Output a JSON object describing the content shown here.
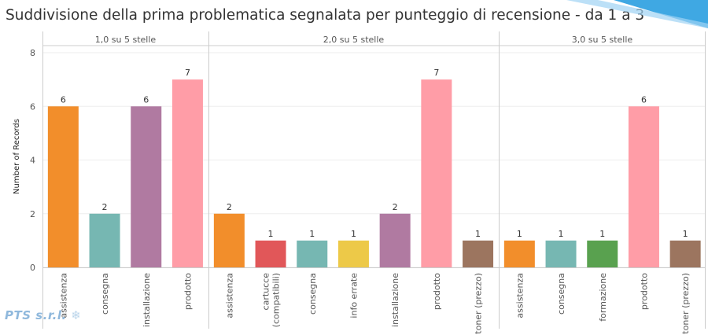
{
  "chart_data": {
    "type": "bar",
    "title": "Suddivisione della prima problematica segnalata per punteggio di recensione - da 1 a 3",
    "ylabel": "Number of Records",
    "ylim": [
      0,
      8
    ],
    "yticks": [
      0,
      2,
      4,
      6,
      8
    ],
    "panels": [
      {
        "label": "1,0 su 5 stelle",
        "bars": [
          {
            "category": "assistenza",
            "value": 6,
            "color": "#f28e2b"
          },
          {
            "category": "consegna",
            "value": 2,
            "color": "#76b7b2"
          },
          {
            "category": "installazione",
            "value": 6,
            "color": "#b07aa1"
          },
          {
            "category": "prodotto",
            "value": 7,
            "color": "#ff9da7"
          }
        ]
      },
      {
        "label": "2,0 su 5 stelle",
        "bars": [
          {
            "category": "assistenza",
            "value": 2,
            "color": "#f28e2b"
          },
          {
            "category": "cartucce (compatibili)",
            "lines": [
              "cartucce",
              "(compatibili)"
            ],
            "value": 1,
            "color": "#e15759"
          },
          {
            "category": "consegna",
            "value": 1,
            "color": "#76b7b2"
          },
          {
            "category": "info errate",
            "value": 1,
            "color": "#edc948"
          },
          {
            "category": "installazione",
            "value": 2,
            "color": "#b07aa1"
          },
          {
            "category": "prodotto",
            "value": 7,
            "color": "#ff9da7"
          },
          {
            "category": "toner (prezzo)",
            "value": 1,
            "color": "#9c755f"
          }
        ]
      },
      {
        "label": "3,0 su 5 stelle",
        "bars": [
          {
            "category": "assistenza",
            "value": 1,
            "color": "#f28e2b"
          },
          {
            "category": "consegna",
            "value": 1,
            "color": "#76b7b2"
          },
          {
            "category": "formazione",
            "value": 1,
            "color": "#59a14f"
          },
          {
            "category": "prodotto",
            "value": 6,
            "color": "#ff9da7"
          },
          {
            "category": "toner (prezzo)",
            "value": 1,
            "color": "#9c755f"
          }
        ]
      }
    ]
  },
  "logo": {
    "text": "PTS s.r.l."
  },
  "colors": {
    "grid": "#eeeeee",
    "divider": "#cccccc",
    "deco": "#1e90d6"
  }
}
